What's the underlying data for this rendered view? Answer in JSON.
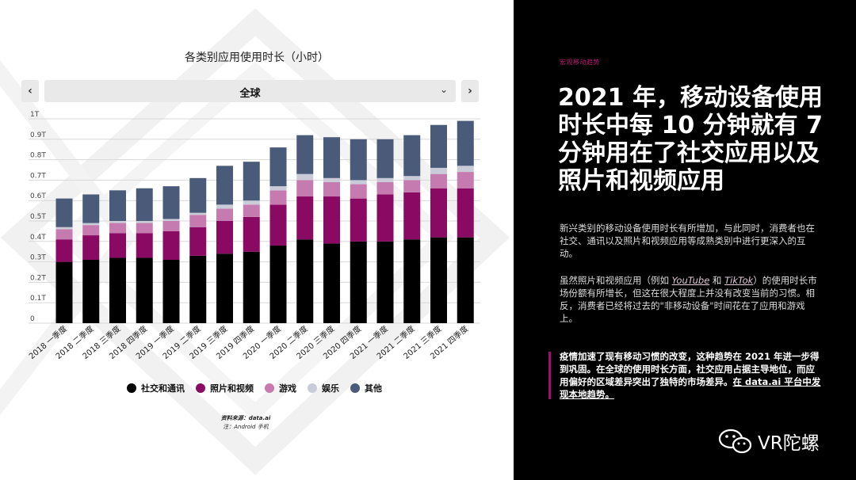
{
  "left": {
    "nav_prev": "‹",
    "nav_next": "›",
    "region": "全球",
    "region_caret": "⌄",
    "source_line": "资料来源：data.ai",
    "note_line": "注：Android 手机"
  },
  "chart_data": {
    "type": "bar",
    "stacked": true,
    "title": "各类别应用使用时长（小时）",
    "xlabel": "",
    "ylabel": "",
    "ylim": [
      0,
      1
    ],
    "ytick_labels": [
      "0",
      "0.1T",
      "0.2T",
      "0.3T",
      "0.4T",
      "0.5T",
      "0.6T",
      "0.7T",
      "0.8T",
      "0.9T",
      "1T"
    ],
    "grid": true,
    "legend_position": "bottom",
    "categories": [
      "2018 一季度",
      "2018 二季度",
      "2018 三季度",
      "2018 四季度",
      "2019 一季度",
      "2019 二季度",
      "2019 三季度",
      "2019 四季度",
      "2020 一季度",
      "2020 二季度",
      "2020 三季度",
      "2020 四季度",
      "2021 一季度",
      "2021 二季度",
      "2021 三季度",
      "2021 四季度"
    ],
    "series": [
      {
        "name": "社交和通讯",
        "color": "#000000",
        "values": [
          0.3,
          0.31,
          0.32,
          0.32,
          0.31,
          0.33,
          0.34,
          0.35,
          0.38,
          0.41,
          0.39,
          0.4,
          0.4,
          0.41,
          0.42,
          0.42
        ]
      },
      {
        "name": "照片和视频",
        "color": "#8a0a63",
        "values": [
          0.11,
          0.12,
          0.12,
          0.12,
          0.14,
          0.14,
          0.16,
          0.17,
          0.2,
          0.21,
          0.23,
          0.21,
          0.23,
          0.23,
          0.24,
          0.24
        ]
      },
      {
        "name": "游戏",
        "color": "#c57ab0",
        "values": [
          0.05,
          0.05,
          0.05,
          0.05,
          0.05,
          0.06,
          0.06,
          0.06,
          0.07,
          0.08,
          0.07,
          0.07,
          0.06,
          0.06,
          0.07,
          0.08
        ]
      },
      {
        "name": "娱乐",
        "color": "#c9cbd8",
        "values": [
          0.01,
          0.01,
          0.01,
          0.01,
          0.01,
          0.01,
          0.02,
          0.02,
          0.02,
          0.03,
          0.02,
          0.02,
          0.02,
          0.02,
          0.03,
          0.03
        ]
      },
      {
        "name": "其他",
        "color": "#4a5a79",
        "values": [
          0.14,
          0.14,
          0.15,
          0.16,
          0.16,
          0.17,
          0.19,
          0.19,
          0.19,
          0.19,
          0.2,
          0.2,
          0.19,
          0.2,
          0.21,
          0.22
        ]
      }
    ]
  },
  "right": {
    "eyebrow": "宏观移动趋势",
    "headline": "2021 年，移动设备使用时长中每 10 分钟就有 7 分钟用在了社交应用以及照片和视频应用",
    "para1": "新兴类别的移动设备使用时长有所增加，与此同时，消费者也在社交、通讯以及照片和视频应用等成熟类别中进行更深入的互动。",
    "para2_a": "虽然照片和视频应用（例如 ",
    "para2_link1": "YouTube",
    "para2_b": " 和 ",
    "para2_link2": "TikTok",
    "para2_c": "）的使用时长市场份额有所增长，但这在很大程度上并没有改变当前的习惯。相反，消费者已经将过去的\"非移动设备\"时间花在了应用和游戏上。",
    "quote_main": "疫情加速了现有移动习惯的改变，这种趋势在 2021 年进一步得到巩固。在全球的使用时长方面，社交应用占据主导地位，而应用偏好的区域差异突出了独特的市场差异。",
    "quote_link": "在 data.ai 平台中发现本地趋势。",
    "brand": "VR陀螺"
  }
}
